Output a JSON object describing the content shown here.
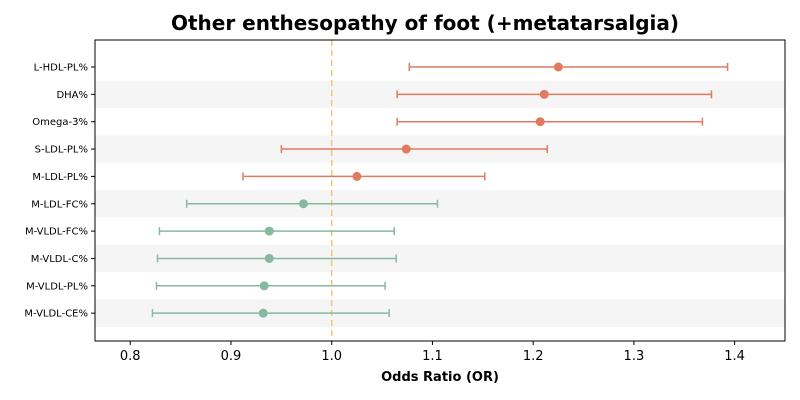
{
  "chart_data": {
    "type": "forest",
    "title": "Other enthesopathy of foot (+metatarsalgia)",
    "xlabel": "Odds Ratio (OR)",
    "xlim": [
      0.765,
      1.45
    ],
    "xticks": [
      "0.8",
      "0.9",
      "1.0",
      "1.1",
      "1.2",
      "1.3",
      "1.4"
    ],
    "reference_line": 1.0,
    "colors": {
      "positive": "#e07b60",
      "negative": "#86b9a0",
      "reference": "#f0c878",
      "band": "#f5f5f5"
    },
    "rows": [
      {
        "label": "L-HDL-PL%",
        "or": 1.225,
        "ci_low": 1.077,
        "ci_high": 1.393
      },
      {
        "label": "DHA%",
        "or": 1.211,
        "ci_low": 1.065,
        "ci_high": 1.377
      },
      {
        "label": "Omega-3%",
        "or": 1.207,
        "ci_low": 1.065,
        "ci_high": 1.368
      },
      {
        "label": "S-LDL-PL%",
        "or": 1.074,
        "ci_low": 0.95,
        "ci_high": 1.214
      },
      {
        "label": "M-LDL-PL%",
        "or": 1.025,
        "ci_low": 0.912,
        "ci_high": 1.152
      },
      {
        "label": "M-LDL-FC%",
        "or": 0.972,
        "ci_low": 0.856,
        "ci_high": 1.105
      },
      {
        "label": "M-VLDL-FC%",
        "or": 0.938,
        "ci_low": 0.829,
        "ci_high": 1.062
      },
      {
        "label": "M-VLDL-C%",
        "or": 0.938,
        "ci_low": 0.827,
        "ci_high": 1.064
      },
      {
        "label": "M-VLDL-PL%",
        "or": 0.933,
        "ci_low": 0.826,
        "ci_high": 1.053
      },
      {
        "label": "M-VLDL-CE%",
        "or": 0.932,
        "ci_low": 0.822,
        "ci_high": 1.057
      }
    ]
  }
}
